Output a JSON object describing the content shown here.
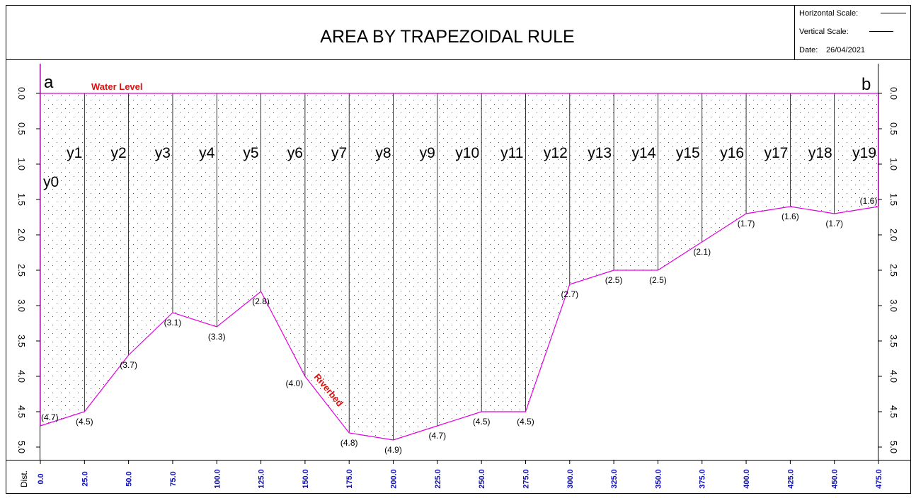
{
  "header": {
    "title": "AREA BY TRAPEZOIDAL RULE",
    "horizontal_scale_label": "Horizontal Scale:",
    "vertical_scale_label": "Vertical Scale:",
    "date_label": "Date:",
    "date_value": "26/04/2021"
  },
  "corner_labels": {
    "left": "a",
    "right": "b"
  },
  "annotations": {
    "water_level": "Water Level",
    "riverbed": "Riverbed"
  },
  "colors": {
    "profile": "#e000e0",
    "annotation": "#e01010",
    "distance_ticks": "#1010c0",
    "frame": "#000000"
  },
  "chart_data": {
    "type": "area",
    "title": "AREA BY TRAPEZOIDAL RULE",
    "xlabel": "Dist.",
    "ylabel": "",
    "x": [
      0,
      25,
      50,
      75,
      100,
      125,
      150,
      175,
      200,
      225,
      250,
      275,
      300,
      325,
      350,
      375,
      400,
      425,
      450,
      475
    ],
    "depths": [
      4.7,
      4.5,
      3.7,
      3.1,
      3.3,
      2.8,
      4.0,
      4.8,
      4.9,
      4.7,
      4.5,
      4.5,
      2.7,
      2.5,
      2.5,
      2.1,
      1.7,
      1.6,
      1.7,
      1.6
    ],
    "depth_labels": [
      "(4.7)",
      "(4.5)",
      "(3.7)",
      "(3.1)",
      "(3.3)",
      "(2.8)",
      "(4.0)",
      "(4.8)",
      "(4.9)",
      "(4.7)",
      "(4.5)",
      "(4.5)",
      "(2.7)",
      "(2.5)",
      "(2.5)",
      "(2.1)",
      "(1.7)",
      "(1.6)",
      "(1.7)",
      "(1.6)"
    ],
    "ordinate_labels": [
      "y0",
      "y1",
      "y2",
      "y3",
      "y4",
      "y5",
      "y6",
      "y7",
      "y8",
      "y9",
      "y10",
      "y11",
      "y12",
      "y13",
      "y14",
      "y15",
      "y16",
      "y17",
      "y18",
      "y19"
    ],
    "x_tick_labels": [
      "0.0",
      "25.0",
      "50.0",
      "75.0",
      "100.0",
      "125.0",
      "150.0",
      "175.0",
      "200.0",
      "225.0",
      "250.0",
      "275.0",
      "300.0",
      "325.0",
      "350.0",
      "375.0",
      "400.0",
      "425.0",
      "450.0",
      "475.0"
    ],
    "y_ticks": [
      0.0,
      0.5,
      1.0,
      1.5,
      2.0,
      2.5,
      3.0,
      3.5,
      4.0,
      4.5,
      5.0
    ],
    "y_tick_labels": [
      "0.0",
      "0.5",
      "1.0",
      "1.5",
      "2.0",
      "2.5",
      "3.0",
      "3.5",
      "4.0",
      "4.5",
      "5.0"
    ],
    "xlim": [
      0,
      475
    ],
    "ylim": [
      0,
      5
    ],
    "y_inverted": true,
    "grid": false,
    "fill": "stippled"
  }
}
